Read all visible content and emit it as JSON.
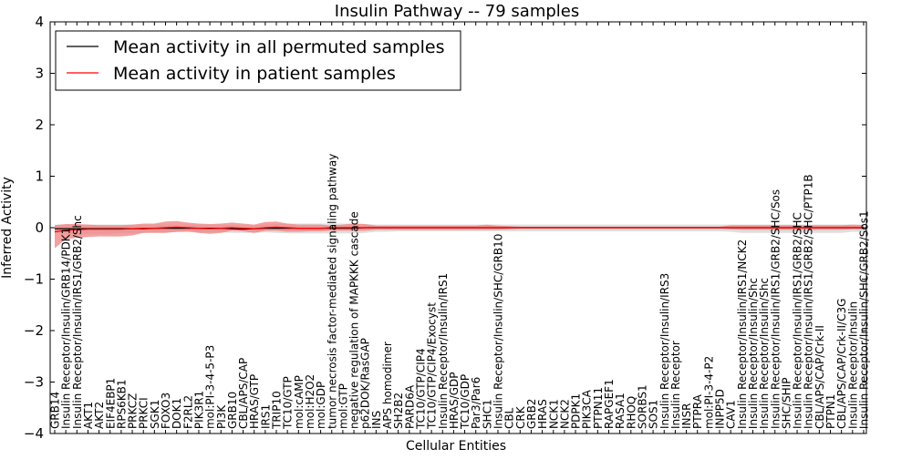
{
  "chart_data": {
    "type": "line",
    "title": "Insulin Pathway -- 79 samples",
    "xlabel": "Cellular Entities",
    "ylabel": "Inferred Activity",
    "ylim": [
      -4,
      4
    ],
    "yticks": [
      -4,
      -3,
      -2,
      -1,
      0,
      1,
      2,
      3,
      4
    ],
    "ytick_labels": [
      "−4",
      "−3",
      "−2",
      "−1",
      "0",
      "1",
      "2",
      "3",
      "4"
    ],
    "grid": false,
    "legend_position": "top-left",
    "categories": [
      "GRB14",
      "Insulin Receptor/Insulin/GRB14/PDK1",
      "Insulin Receptor/Insulin/IRS1/GRB2/Shc",
      "AKT1",
      "AKT2",
      "EIF4EBP1",
      "RPS6KB1",
      "PRKCZ",
      "PRKCI",
      "SGK1",
      "FOXO3",
      "DOK1",
      "F2RL2",
      "PIK3R1",
      "mol:PI-3-4-5-P3",
      "PI3K",
      "GRB10",
      "CBL/APS/CAP",
      "HRAS/GTP",
      "IRS1",
      "TRIP10",
      "TC10/GTP",
      "mol:cAMP",
      "mol:H2O2",
      "mol:GDP",
      "tumor necrosis factor-mediated signaling pathway",
      "mol:GTP",
      "negative regulation of MAPKKK cascade",
      "p62DOK/RasGAP",
      "INS",
      "APS homodimer",
      "SH2B2",
      "PARD6A",
      "TC10/GTP/CIP4",
      "TC10/GTP/CIP4/Exocyst",
      "Insulin Receptor/Insulin/IRS1",
      "HRAS/GDP",
      "TC10/GDP",
      "Par3/Par6",
      "SHC1",
      "Insulin Receptor/Insulin/SHC/GRB10",
      "CBL",
      "CRK",
      "GRB2",
      "HRAS",
      "NCK1",
      "NCK2",
      "PDPK1",
      "PIK3CA",
      "PTPN11",
      "RAPGEF1",
      "RASA1",
      "RHOQ",
      "SORBS1",
      "SOS1",
      "Insulin Receptor/Insulin/IRS3",
      "Insulin Receptor",
      "INSR",
      "PTPRA",
      "mol:PI-3-4-P2",
      "INPP5D",
      "CAV1",
      "Insulin Receptor/Insulin/IRS1/NCK2",
      "Insulin Receptor/Insulin/Shc",
      "Insulin Receptor/Insulin/Shc",
      "Insulin Receptor/Insulin/IRS1/GRB2/SHC/Sos",
      "SHC/SHIP",
      "Insulin Receptor/Insulin/IRS1/GRB2/SHC",
      "Insulin Receptor/Insulin/IRS1/GRB2/SHC/PTP1B",
      "CBL/APS/CAP/Crk-II",
      "PTPN1",
      "CBL/APS/CAP/Crk-II/C3G",
      "Insulin Receptor/Insulin",
      "Insulin Receptor/Insulin/SHC/GRB2/Sos1"
    ],
    "series": [
      {
        "name": "Mean activity in all permuted samples",
        "color": "#000000",
        "values": [
          -0.02,
          -0.02,
          -0.02,
          -0.02,
          -0.02,
          -0.02,
          -0.02,
          -0.02,
          -0.02,
          -0.01,
          -0.01,
          -0.01,
          -0.01,
          -0.01,
          -0.01,
          -0.01,
          -0.02,
          -0.03,
          -0.02,
          -0.01,
          -0.01,
          -0.01,
          -0.01,
          -0.01,
          -0.01,
          -0.01,
          -0.01,
          -0.01,
          0,
          0,
          0,
          0,
          0,
          0,
          0,
          0,
          0,
          0,
          0,
          0,
          0,
          0,
          0,
          0,
          0,
          0,
          0,
          0,
          0,
          0,
          0,
          0,
          0,
          0,
          0,
          0,
          0,
          0,
          0,
          0,
          0,
          0,
          0,
          0,
          0,
          0,
          0,
          0,
          0,
          0,
          0,
          0,
          0,
          0
        ],
        "band_low": [
          -0.1,
          -0.12,
          -0.12,
          -0.12,
          -0.12,
          -0.12,
          -0.1,
          -0.1,
          -0.1,
          -0.09,
          -0.09,
          -0.09,
          -0.09,
          -0.09,
          -0.09,
          -0.09,
          -0.1,
          -0.1,
          -0.1,
          -0.09,
          -0.1,
          -0.11,
          -0.11,
          -0.11,
          -0.11,
          -0.11,
          -0.11,
          -0.11,
          -0.1,
          -0.08,
          -0.08,
          -0.07,
          -0.07,
          -0.07,
          -0.07,
          -0.07,
          -0.07,
          -0.07,
          -0.07,
          -0.07,
          -0.07,
          -0.07,
          -0.07,
          -0.07,
          -0.07,
          -0.07,
          -0.07,
          -0.07,
          -0.07,
          -0.07,
          -0.07,
          -0.07,
          -0.07,
          -0.07,
          -0.07,
          -0.07,
          -0.07,
          -0.07,
          -0.07,
          -0.07,
          -0.07,
          -0.08,
          -0.1,
          -0.1,
          -0.1,
          -0.1,
          -0.1,
          -0.1,
          -0.1,
          -0.1,
          -0.1,
          -0.1,
          -0.08,
          -0.08
        ],
        "band_high": [
          0.06,
          0.06,
          0.06,
          0.06,
          0.06,
          0.06,
          0.06,
          0.06,
          0.06,
          0.06,
          0.06,
          0.06,
          0.06,
          0.06,
          0.06,
          0.06,
          0.05,
          0.04,
          0.05,
          0.06,
          0.07,
          0.08,
          0.08,
          0.08,
          0.08,
          0.08,
          0.08,
          0.08,
          0.07,
          0.06,
          0.06,
          0.06,
          0.06,
          0.06,
          0.06,
          0.06,
          0.06,
          0.06,
          0.06,
          0.06,
          0.06,
          0.06,
          0.06,
          0.06,
          0.06,
          0.06,
          0.06,
          0.06,
          0.06,
          0.06,
          0.06,
          0.06,
          0.06,
          0.06,
          0.06,
          0.06,
          0.06,
          0.06,
          0.06,
          0.06,
          0.06,
          0.06,
          0.06,
          0.06,
          0.06,
          0.06,
          0.06,
          0.06,
          0.06,
          0.06,
          0.06,
          0.06,
          0.06,
          0.06
        ],
        "band_color": "#c8c8c8"
      },
      {
        "name": "Mean activity in patient samples",
        "color": "#ff0000",
        "values": [
          -0.08,
          -0.05,
          -0.04,
          -0.03,
          -0.03,
          -0.03,
          -0.03,
          -0.02,
          -0.01,
          -0.01,
          0,
          0.01,
          0,
          -0.01,
          -0.02,
          -0.01,
          0,
          -0.01,
          -0.02,
          0,
          0.01,
          0,
          -0.01,
          -0.01,
          -0.01,
          0,
          0,
          0,
          0,
          0,
          0,
          0,
          0,
          0,
          0,
          0,
          0,
          0,
          0,
          0,
          0,
          0,
          0,
          0,
          0,
          0,
          0,
          0,
          0,
          0,
          0,
          0,
          0,
          0,
          0,
          0,
          0,
          0,
          0,
          0,
          0,
          0,
          0,
          0,
          0,
          0,
          0,
          0,
          0,
          0,
          0,
          0,
          0,
          0
        ],
        "band_low": [
          -0.4,
          -0.22,
          -0.2,
          -0.18,
          -0.17,
          -0.17,
          -0.17,
          -0.15,
          -0.1,
          -0.1,
          -0.1,
          -0.08,
          -0.07,
          -0.1,
          -0.12,
          -0.1,
          -0.06,
          -0.07,
          -0.1,
          -0.06,
          -0.06,
          -0.08,
          -0.08,
          -0.07,
          -0.07,
          -0.06,
          -0.06,
          -0.06,
          -0.06,
          -0.04,
          -0.04,
          -0.04,
          -0.04,
          -0.04,
          -0.04,
          -0.04,
          -0.04,
          -0.04,
          -0.04,
          -0.04,
          -0.04,
          -0.03,
          -0.02,
          -0.02,
          -0.02,
          -0.02,
          -0.02,
          -0.02,
          -0.02,
          -0.02,
          -0.02,
          -0.02,
          -0.02,
          -0.02,
          -0.02,
          -0.02,
          -0.02,
          -0.02,
          -0.02,
          -0.02,
          -0.02,
          -0.03,
          -0.04,
          -0.04,
          -0.04,
          -0.04,
          -0.04,
          -0.04,
          -0.04,
          -0.04,
          -0.04,
          -0.04,
          -0.03,
          -0.03
        ],
        "band_high": [
          0.05,
          0.07,
          0.07,
          0.06,
          0.05,
          0.05,
          0.05,
          0.06,
          0.08,
          0.08,
          0.12,
          0.13,
          0.1,
          0.08,
          0.07,
          0.08,
          0.1,
          0.08,
          0.06,
          0.11,
          0.12,
          0.08,
          0.06,
          0.06,
          0.06,
          0.04,
          0.06,
          0.08,
          0.07,
          0.04,
          0.04,
          0.04,
          0.04,
          0.04,
          0.04,
          0.04,
          0.04,
          0.04,
          0.04,
          0.06,
          0.04,
          0.03,
          0.02,
          0.02,
          0.02,
          0.02,
          0.02,
          0.02,
          0.02,
          0.02,
          0.02,
          0.02,
          0.02,
          0.02,
          0.02,
          0.02,
          0.02,
          0.02,
          0.02,
          0.02,
          0.02,
          0.05,
          0.05,
          0.05,
          0.05,
          0.05,
          0.05,
          0.05,
          0.05,
          0.05,
          0.05,
          0.05,
          0.06,
          0.05
        ],
        "band_color": "#f08080"
      }
    ]
  }
}
